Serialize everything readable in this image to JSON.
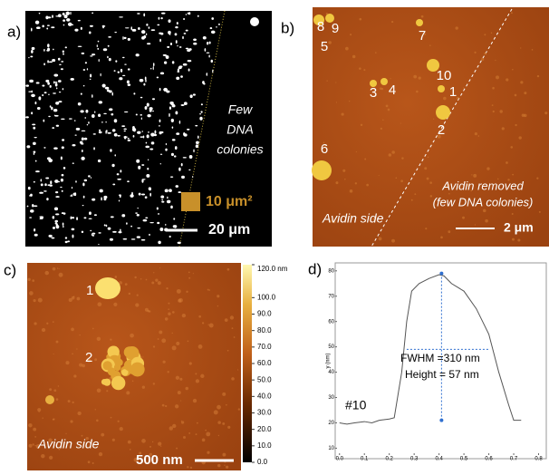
{
  "panel_a": {
    "letter": "a)",
    "note_lines": [
      "Few",
      "DNA",
      "colonies"
    ],
    "area_label": "10 μm²",
    "scale_label": "20 μm"
  },
  "panel_b": {
    "letter": "b)",
    "spot_labels": [
      "8",
      "9",
      "5",
      "7",
      "10",
      "3",
      "4",
      "1",
      "2",
      "6"
    ],
    "side_label": "Avidin side",
    "removed_lines": [
      "Avidin removed",
      "(few DNA colonies)"
    ],
    "scale_label": "2 μm"
  },
  "panel_c": {
    "letter": "c)",
    "spot_labels": [
      "1",
      "2"
    ],
    "side_label": "Avidin side",
    "scale_label": "500 nm",
    "clim": [
      0,
      120
    ],
    "cticks": [
      {
        "value": 120,
        "label": "120.0 nm"
      },
      {
        "value": 100,
        "label": "100.0"
      },
      {
        "value": 90,
        "label": "90.0"
      },
      {
        "value": 80,
        "label": "80.0"
      },
      {
        "value": 70,
        "label": "70.0"
      },
      {
        "value": 60,
        "label": "60.0"
      },
      {
        "value": 50,
        "label": "50.0"
      },
      {
        "value": 40,
        "label": "40.0"
      },
      {
        "value": 30,
        "label": "30.0"
      },
      {
        "value": 20,
        "label": "20.0"
      },
      {
        "value": 10,
        "label": "10.0"
      },
      {
        "value": 0,
        "label": "0.0"
      }
    ]
  },
  "chart_data": {
    "type": "line",
    "letter": "d)",
    "ylabel": "y (nm)",
    "color": "#555555",
    "x": [
      0.0,
      0.03,
      0.06,
      0.1,
      0.13,
      0.16,
      0.2,
      0.22,
      0.25,
      0.27,
      0.29,
      0.32,
      0.36,
      0.4,
      0.42,
      0.45,
      0.5,
      0.55,
      0.6,
      0.64,
      0.68,
      0.7,
      0.73
    ],
    "values": [
      20,
      19.5,
      20,
      20.5,
      20,
      21,
      21.5,
      22,
      40,
      60,
      72,
      75,
      77,
      78.5,
      78,
      75,
      72,
      65,
      55,
      40,
      27,
      21,
      21
    ],
    "xlim": [
      -0.01,
      0.82
    ],
    "ylim": [
      8,
      81
    ],
    "xticks": [
      {
        "value": 0,
        "label": "0.0"
      },
      {
        "value": 0.1,
        "label": "0.1"
      },
      {
        "value": 0.2,
        "label": "0.2"
      },
      {
        "value": 0.3,
        "label": "0.3"
      },
      {
        "value": 0.4,
        "label": "0.4"
      },
      {
        "value": 0.5,
        "label": "0.5"
      },
      {
        "value": 0.6,
        "label": "0.6"
      },
      {
        "value": 0.7,
        "label": "0.7"
      },
      {
        "value": 0.8,
        "label": "0.8"
      }
    ],
    "yticks": [
      10,
      20,
      30,
      40,
      50,
      60,
      70,
      80
    ],
    "guides": [
      {
        "x": [
          0.41,
          0.41
        ],
        "y": [
          79,
          21
        ]
      },
      {
        "x": [
          0.27,
          0.6
        ],
        "y": [
          49,
          49
        ]
      }
    ],
    "annotations": [
      "FWHM =310 nm",
      "Height = 57 nm",
      "#10"
    ]
  }
}
